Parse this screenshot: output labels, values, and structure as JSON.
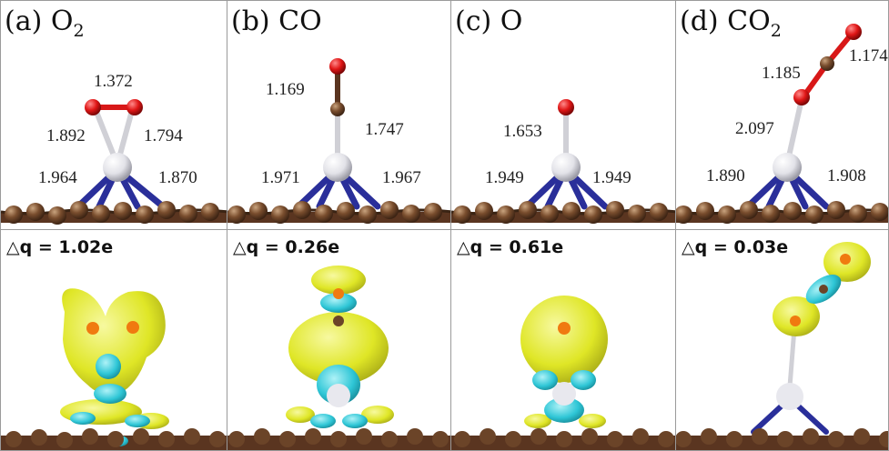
{
  "panels": [
    {
      "letter": "(a)",
      "species": "O",
      "subscript": "2",
      "bond_labels": [
        "1.372",
        "1.892",
        "1.794",
        "1.964",
        "1.870"
      ],
      "charge_prefix": "△q = ",
      "charge": "1.02e"
    },
    {
      "letter": "(b)",
      "species": "CO",
      "subscript": "",
      "bond_labels": [
        "1.169",
        "1.747",
        "1.971",
        "1.967"
      ],
      "charge_prefix": "△q = ",
      "charge": "0.26e"
    },
    {
      "letter": "(c)",
      "species": "O",
      "subscript": "",
      "bond_labels": [
        "1.653",
        "1.949",
        "1.949"
      ],
      "charge_prefix": "△q = ",
      "charge": "0.61e"
    },
    {
      "letter": "(d)",
      "species": "CO",
      "subscript": "2",
      "bond_labels": [
        "1.185",
        "1.174",
        "2.097",
        "1.890",
        "1.908"
      ],
      "charge_prefix": "△q = ",
      "charge": "0.03e"
    }
  ],
  "colors": {
    "carbon_sheet": "#6b4428",
    "nitrogen": "#2a2f9a",
    "metal": "#e8e8ee",
    "oxygen": "#d81818",
    "isosurface_yellow": "#e6ec2a",
    "isosurface_cyan": "#2ec6d6"
  }
}
